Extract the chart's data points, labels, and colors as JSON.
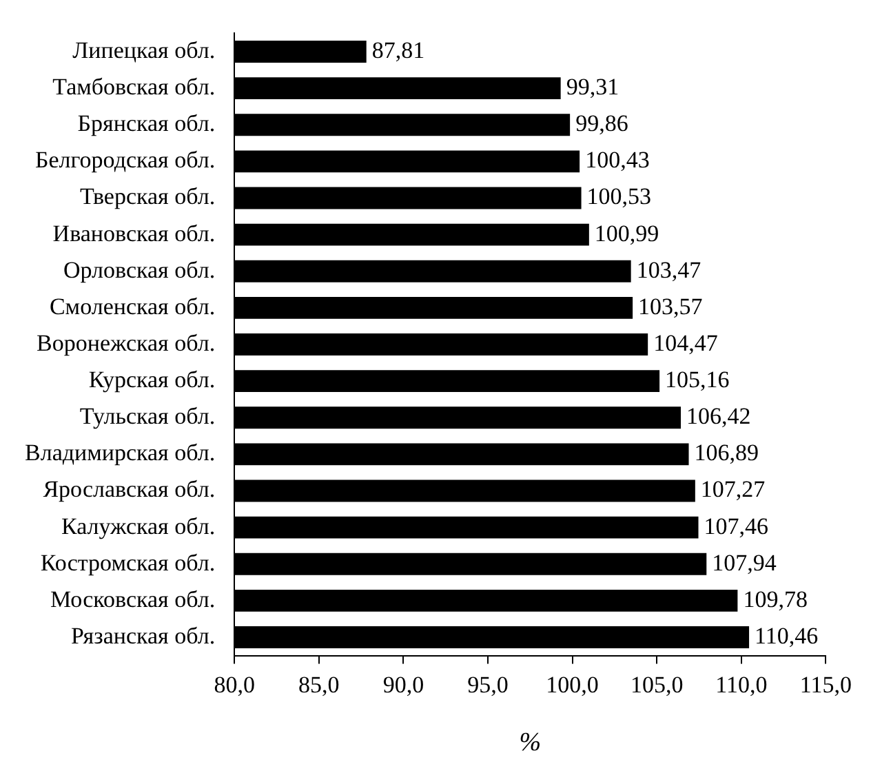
{
  "chart_data": {
    "type": "bar",
    "orientation": "horizontal",
    "xlabel": "%",
    "categories": [
      "Липецкая обл.",
      "Тамбовская обл.",
      "Брянская обл.",
      "Белгородская обл.",
      "Тверская обл.",
      "Ивановская обл.",
      "Орловская обл.",
      "Смоленская обл.",
      "Воронежская обл.",
      "Курская обл.",
      "Тульская обл.",
      "Владимирская обл.",
      "Ярославская обл.",
      "Калужская обл.",
      "Костромская обл.",
      "Московская обл.",
      "Рязанская обл."
    ],
    "values": [
      87.81,
      99.31,
      99.86,
      100.43,
      100.53,
      100.99,
      103.47,
      103.57,
      104.47,
      105.16,
      106.42,
      106.89,
      107.27,
      107.46,
      107.94,
      109.78,
      110.46
    ],
    "value_labels": [
      "87,81",
      "99,31",
      "99,86",
      "100,43",
      "100,53",
      "100,99",
      "103,47",
      "103,57",
      "104,47",
      "105,16",
      "106,42",
      "106,89",
      "107,27",
      "107,46",
      "107,94",
      "109,78",
      "110,46"
    ],
    "color": "#000000",
    "xlim": [
      80,
      115
    ],
    "xticks": [
      {
        "value": 80,
        "label": "80,0"
      },
      {
        "value": 85,
        "label": "85,0"
      },
      {
        "value": 90,
        "label": "90,0"
      },
      {
        "value": 95,
        "label": "95,0"
      },
      {
        "value": 100,
        "label": "100,0"
      },
      {
        "value": 105,
        "label": "105,0"
      },
      {
        "value": 110,
        "label": "110,0"
      },
      {
        "value": 115,
        "label": "115,0"
      }
    ]
  }
}
